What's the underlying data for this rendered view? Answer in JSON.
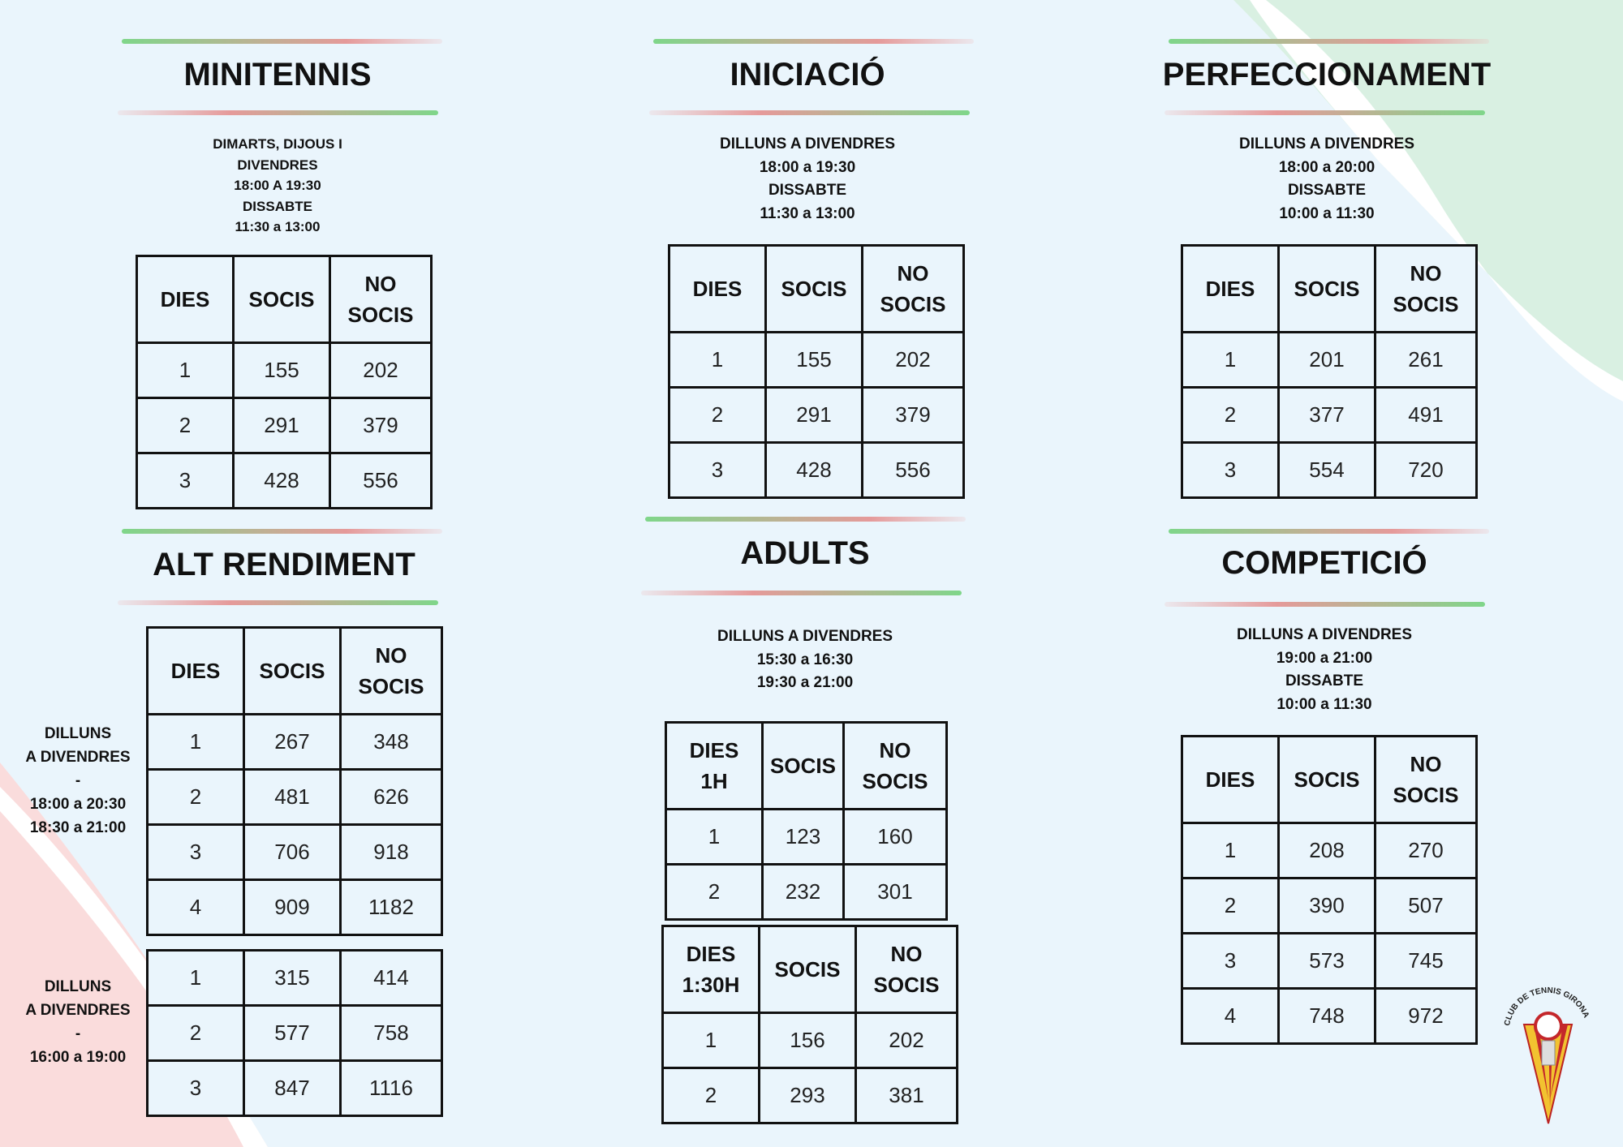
{
  "sections": [
    {
      "title": "MINITENNIS",
      "schedule": [
        "DIMARTS, DIJOUS I",
        "DIVENDRES",
        "18:00 A 19:30",
        "DISSABTE",
        "11:30 a 13:00"
      ],
      "tables": [
        {
          "header": [
            "DIES",
            "SOCIS",
            "NO\nSOCIS"
          ],
          "rows": [
            [
              1,
              155,
              202
            ],
            [
              2,
              291,
              379
            ],
            [
              3,
              428,
              556
            ]
          ]
        }
      ]
    },
    {
      "title": "INICIACIÓ",
      "schedule": [
        "DILLUNS A DIVENDRES",
        "18:00 a 19:30",
        "DISSABTE",
        "11:30 a 13:00"
      ],
      "tables": [
        {
          "header": [
            "DIES",
            "SOCIS",
            "NO\nSOCIS"
          ],
          "rows": [
            [
              1,
              155,
              202
            ],
            [
              2,
              291,
              379
            ],
            [
              3,
              428,
              556
            ]
          ]
        }
      ]
    },
    {
      "title": "PERFECCIONAMENT",
      "schedule": [
        "DILLUNS A DIVENDRES",
        "18:00 a 20:00",
        "DISSABTE",
        "10:00 a 11:30"
      ],
      "tables": [
        {
          "header": [
            "DIES",
            "SOCIS",
            "NO\nSOCIS"
          ],
          "rows": [
            [
              1,
              201,
              261
            ],
            [
              2,
              377,
              491
            ],
            [
              3,
              554,
              720
            ]
          ]
        }
      ]
    },
    {
      "title": "ALT RENDIMENT",
      "tables": [
        {
          "label": [
            "DILLUNS",
            "A DIVENDRES",
            "-",
            "18:00 a 20:30",
            "18:30 a 21:00"
          ],
          "header": [
            "DIES",
            "SOCIS",
            "NO\nSOCIS"
          ],
          "rows": [
            [
              1,
              267,
              348
            ],
            [
              2,
              481,
              626
            ],
            [
              3,
              706,
              918
            ],
            [
              4,
              909,
              1182
            ]
          ]
        },
        {
          "label": [
            "DILLUNS",
            "A DIVENDRES",
            "-",
            "16:00 a 19:00"
          ],
          "rows": [
            [
              1,
              315,
              414
            ],
            [
              2,
              577,
              758
            ],
            [
              3,
              847,
              1116
            ]
          ]
        }
      ]
    },
    {
      "title": "ADULTS",
      "schedule": [
        "DILLUNS A DIVENDRES",
        "15:30 a 16:30",
        "19:30 a 21:00"
      ],
      "tables": [
        {
          "header": [
            "DIES\n1H",
            "SOCIS",
            "NO\nSOCIS"
          ],
          "rows": [
            [
              1,
              123,
              160
            ],
            [
              2,
              232,
              301
            ]
          ]
        },
        {
          "header": [
            "DIES\n1:30H",
            "SOCIS",
            "NO\nSOCIS"
          ],
          "rows": [
            [
              1,
              156,
              202
            ],
            [
              2,
              293,
              381
            ]
          ]
        }
      ]
    },
    {
      "title": "COMPETICIÓ",
      "schedule": [
        "DILLUNS A DIVENDRES",
        "19:00 a 21:00",
        "DISSABTE",
        "10:00 a 11:30"
      ],
      "tables": [
        {
          "header": [
            "DIES",
            "SOCIS",
            "NO\nSOCIS"
          ],
          "rows": [
            [
              1,
              208,
              270
            ],
            [
              2,
              390,
              507
            ],
            [
              3,
              573,
              745
            ],
            [
              4,
              748,
              972
            ]
          ]
        }
      ]
    }
  ],
  "logo": "CLUB DE TENNIS GIRONA"
}
